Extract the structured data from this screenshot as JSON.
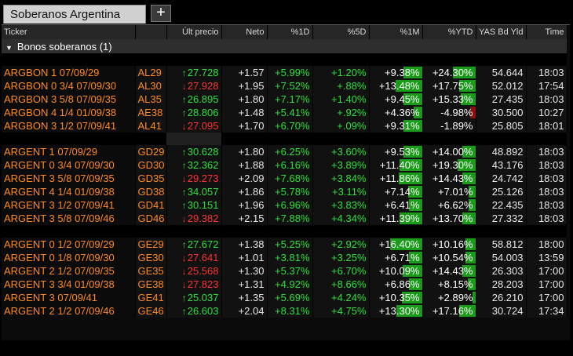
{
  "tab": {
    "title": "Soberanos Argentina",
    "add": "+"
  },
  "columns": [
    "Ticker",
    "",
    "Últ precio",
    "Neto",
    "%1D",
    "%5D",
    "%1M",
    "%YTD",
    "YAS Bd Yld",
    "Time"
  ],
  "group": {
    "label": "Bonos soberanos (1)",
    "toggle": "▼"
  },
  "sections": [
    {
      "rows": [
        {
          "name": "ARGBON 1 07/09/29",
          "code": "AL29",
          "dir": "up",
          "price": "27.728",
          "neto": "+1.57",
          "d1": "+5.99%",
          "d5": "+1.20%",
          "m1": "+9.38%",
          "m1_fill": 0.35,
          "ytd": "+24.30%",
          "ytd_fill": 0.42,
          "ytd_neg": false,
          "yld": "54.644",
          "time": "18:03"
        },
        {
          "name": "ARGBON 0 3/4 07/09/30",
          "code": "AL30",
          "dir": "down",
          "price": "27.928",
          "neto": "+1.95",
          "d1": "+7.52%",
          "d5": "+.88%",
          "m1": "+13.48%",
          "m1_fill": 0.5,
          "ytd": "+17.75%",
          "ytd_fill": 0.31,
          "ytd_neg": false,
          "yld": "52.012",
          "time": "17:54"
        },
        {
          "name": "ARGBON 3 5/8 07/09/35",
          "code": "AL35",
          "dir": "up",
          "price": "26.895",
          "neto": "+1.80",
          "d1": "+7.17%",
          "d5": "+1.40%",
          "m1": "+9.45%",
          "m1_fill": 0.35,
          "ytd": "+15.33%",
          "ytd_fill": 0.27,
          "ytd_neg": false,
          "yld": "27.435",
          "time": "18:03"
        },
        {
          "name": "ARGBON 4 1/4 01/09/38",
          "code": "AE38",
          "dir": "up",
          "price": "28.806",
          "neto": "+1.48",
          "d1": "+5.41%",
          "d5": "+.92%",
          "m1": "+4.36%",
          "m1_fill": 0.16,
          "ytd": "-4.98%",
          "ytd_fill": 0.09,
          "ytd_neg": true,
          "yld": "30.500",
          "time": "10:27"
        },
        {
          "name": "ARGBON 3 1/2 07/09/41",
          "code": "AL41",
          "dir": "down",
          "price": "27.095",
          "neto": "+1.70",
          "d1": "+6.70%",
          "d5": "+.09%",
          "m1": "+9.31%",
          "m1_fill": 0.35,
          "ytd": "-1.89%",
          "ytd_fill": 0.0,
          "ytd_neg": true,
          "yld": "25.805",
          "time": "18:01"
        }
      ]
    },
    {
      "rows": [
        {
          "name": "ARGENT 1 07/09/29",
          "code": "GD29",
          "dir": "up",
          "price": "30.628",
          "neto": "+1.80",
          "d1": "+6.25%",
          "d5": "+3.60%",
          "m1": "+9.53%",
          "m1_fill": 0.35,
          "ytd": "+14.00%",
          "ytd_fill": 0.25,
          "ytd_neg": false,
          "yld": "48.892",
          "time": "18:03"
        },
        {
          "name": "ARGENT 0 3/4 07/09/30",
          "code": "GD30",
          "dir": "up",
          "price": "32.362",
          "neto": "+1.88",
          "d1": "+6.16%",
          "d5": "+3.89%",
          "m1": "+11.40%",
          "m1_fill": 0.42,
          "ytd": "+19.30%",
          "ytd_fill": 0.34,
          "ytd_neg": false,
          "yld": "43.176",
          "time": "18:03"
        },
        {
          "name": "ARGENT 3 5/8 07/09/35",
          "code": "GD35",
          "dir": "down",
          "price": "29.273",
          "neto": "+2.09",
          "d1": "+7.68%",
          "d5": "+3.84%",
          "m1": "+11.86%",
          "m1_fill": 0.44,
          "ytd": "+14.43%",
          "ytd_fill": 0.25,
          "ytd_neg": false,
          "yld": "24.742",
          "time": "18:03"
        },
        {
          "name": "ARGENT 4 1/4 01/09/38",
          "code": "GD38",
          "dir": "up",
          "price": "34.057",
          "neto": "+1.86",
          "d1": "+5.78%",
          "d5": "+3.11%",
          "m1": "+7.14%",
          "m1_fill": 0.26,
          "ytd": "+7.01%",
          "ytd_fill": 0.12,
          "ytd_neg": false,
          "yld": "25.126",
          "time": "18:03"
        },
        {
          "name": "ARGENT 3 1/2 07/09/41",
          "code": "GD41",
          "dir": "up",
          "price": "30.151",
          "neto": "+1.96",
          "d1": "+6.96%",
          "d5": "+3.83%",
          "m1": "+6.41%",
          "m1_fill": 0.24,
          "ytd": "+6.62%",
          "ytd_fill": 0.12,
          "ytd_neg": false,
          "yld": "22.435",
          "time": "18:03"
        },
        {
          "name": "ARGENT 3 5/8 07/09/46",
          "code": "GD46",
          "dir": "down",
          "price": "29.382",
          "neto": "+2.15",
          "d1": "+7.88%",
          "d5": "+4.34%",
          "m1": "+11.39%",
          "m1_fill": 0.42,
          "ytd": "+13.70%",
          "ytd_fill": 0.24,
          "ytd_neg": false,
          "yld": "27.332",
          "time": "18:03"
        }
      ]
    },
    {
      "rows": [
        {
          "name": "ARGENT 0 1/2 07/09/29",
          "code": "GE29",
          "dir": "up",
          "price": "27.672",
          "neto": "+1.38",
          "d1": "+5.25%",
          "d5": "+2.92%",
          "m1": "+16.40%",
          "m1_fill": 0.61,
          "ytd": "+10.16%",
          "ytd_fill": 0.18,
          "ytd_neg": false,
          "yld": "58.812",
          "time": "18:00"
        },
        {
          "name": "ARGENT 0 1/8 07/09/30",
          "code": "GE30",
          "dir": "down",
          "price": "27.641",
          "neto": "+1.01",
          "d1": "+3.81%",
          "d5": "+3.25%",
          "m1": "+6.71%",
          "m1_fill": 0.25,
          "ytd": "+10.54%",
          "ytd_fill": 0.19,
          "ytd_neg": false,
          "yld": "54.003",
          "time": "13:59"
        },
        {
          "name": "ARGENT 2 1/2 07/09/35",
          "code": "GE35",
          "dir": "down",
          "price": "25.568",
          "neto": "+1.30",
          "d1": "+5.37%",
          "d5": "+6.70%",
          "m1": "+10.09%",
          "m1_fill": 0.37,
          "ytd": "+14.43%",
          "ytd_fill": 0.25,
          "ytd_neg": false,
          "yld": "26.303",
          "time": "17:00"
        },
        {
          "name": "ARGENT 3 3/4 01/09/38",
          "code": "GE38",
          "dir": "down",
          "price": "27.823",
          "neto": "+1.31",
          "d1": "+4.92%",
          "d5": "+8.66%",
          "m1": "+6.86%",
          "m1_fill": 0.25,
          "ytd": "+8.15%",
          "ytd_fill": 0.14,
          "ytd_neg": false,
          "yld": "28.203",
          "time": "17:00"
        },
        {
          "name": "ARGENT 3 07/09/41",
          "code": "GE41",
          "dir": "up",
          "price": "25.037",
          "neto": "+1.35",
          "d1": "+5.69%",
          "d5": "+4.24%",
          "m1": "+10.35%",
          "m1_fill": 0.38,
          "ytd": "+2.89%",
          "ytd_fill": 0.05,
          "ytd_neg": false,
          "yld": "26.210",
          "time": "17:00"
        },
        {
          "name": "ARGENT 2 1/2 07/09/46",
          "code": "GE46",
          "dir": "up",
          "price": "26.603",
          "neto": "+2.04",
          "d1": "+8.31%",
          "d5": "+4.75%",
          "m1": "+13.30%",
          "m1_fill": 0.49,
          "ytd": "+17.16%",
          "ytd_fill": 0.3,
          "ytd_neg": false,
          "yld": "30.724",
          "time": "17:34"
        }
      ]
    }
  ]
}
